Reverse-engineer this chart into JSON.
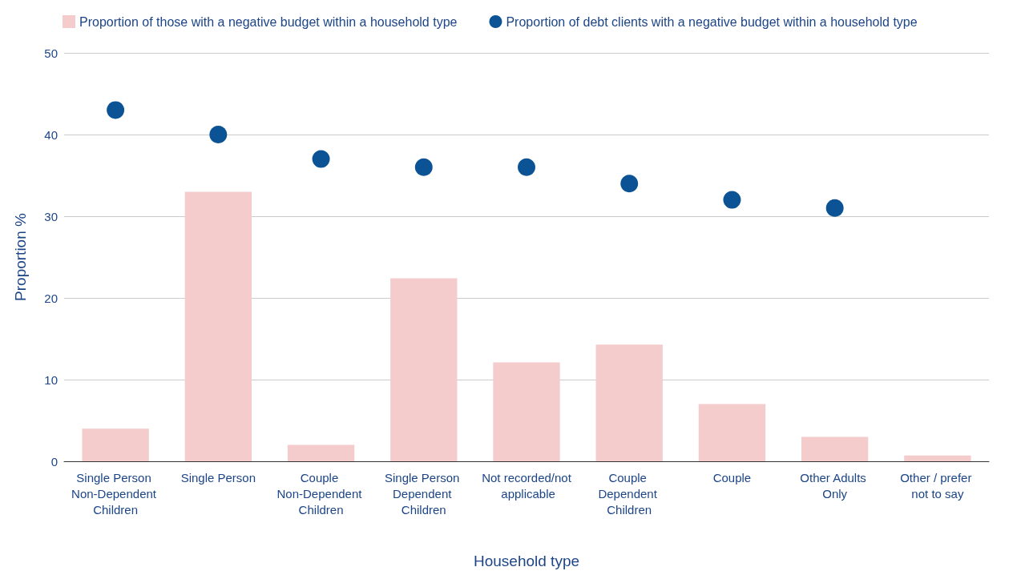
{
  "chart_data": {
    "type": "bar",
    "xlabel": "Household type",
    "ylabel": "Proportion %",
    "categories": [
      "Single Person Non-Dependent Children",
      "Single Person",
      "Couple Non-Dependent Children",
      "Single Person Dependent Children",
      "Not recorded/not applicable",
      "Couple Dependent Children",
      "Couple",
      "Other Adults Only",
      "Other / prefer not to say"
    ],
    "series": [
      {
        "name": "Proportion of those with a negative budget within a household type",
        "color": "#f4cccc",
        "values": [
          4,
          33,
          2,
          22.4,
          12.1,
          14.3,
          7,
          3,
          0.7
        ]
      },
      {
        "name": "Proportion of debt clients with a negative budget within a household type",
        "type": "scatter",
        "color": "#0b5394",
        "values": [
          43,
          40,
          37,
          36,
          36,
          34,
          32,
          31,
          null
        ]
      }
    ],
    "ylim": [
      0,
      50
    ],
    "yticks": [
      0,
      10,
      20,
      30,
      40,
      50
    ],
    "grid": "y",
    "legend": "top",
    "marker": "circle"
  }
}
